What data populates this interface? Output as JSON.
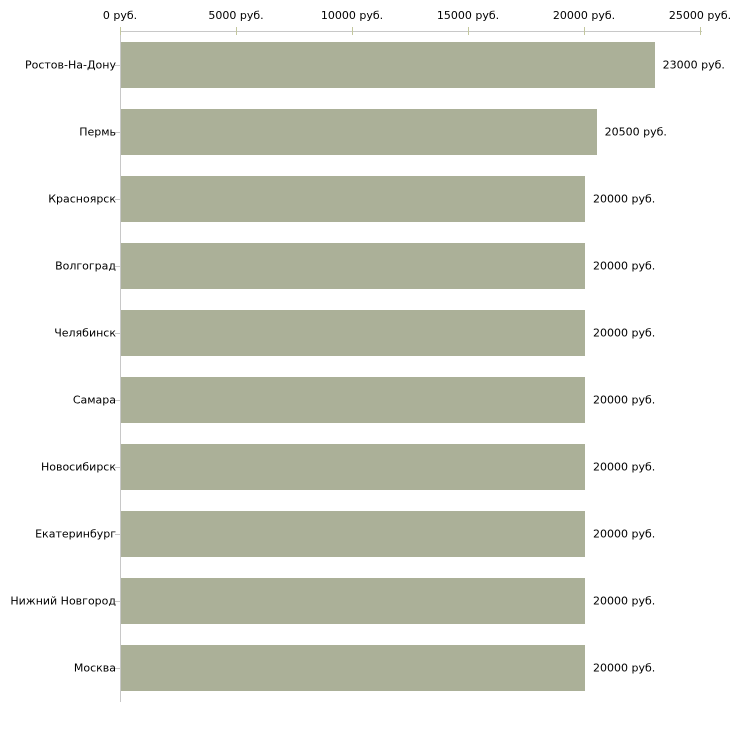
{
  "chart_data": {
    "type": "bar",
    "orientation": "horizontal",
    "title": "",
    "xlabel": "",
    "ylabel": "",
    "unit": "руб.",
    "categories": [
      "Ростов-На-Дону",
      "Пермь",
      "Красноярск",
      "Волгоград",
      "Челябинск",
      "Самара",
      "Новосибирск",
      "Екатеринбург",
      "Нижний Новгород",
      "Москва"
    ],
    "values": [
      23000,
      20500,
      20000,
      20000,
      20000,
      20000,
      20000,
      20000,
      20000,
      20000
    ],
    "value_labels": [
      "23000 руб.",
      "20500 руб.",
      "20000 руб.",
      "20000 руб.",
      "20000 руб.",
      "20000 руб.",
      "20000 руб.",
      "20000 руб.",
      "20000 руб.",
      "20000 руб."
    ],
    "xlim": [
      0,
      25000
    ],
    "x_ticks": [
      0,
      5000,
      10000,
      15000,
      20000,
      25000
    ],
    "x_tick_labels": [
      "0 руб.",
      "5000 руб.",
      "10000 руб.",
      "15000 руб.",
      "20000 руб.",
      "25000 руб."
    ],
    "grid": false,
    "legend": false,
    "axis_position": "top",
    "colors": {
      "bar": "#abb098",
      "axis": "#c8c8c8",
      "tick": "#c3c79d",
      "text": "#000000",
      "background": "#ffffff"
    }
  }
}
